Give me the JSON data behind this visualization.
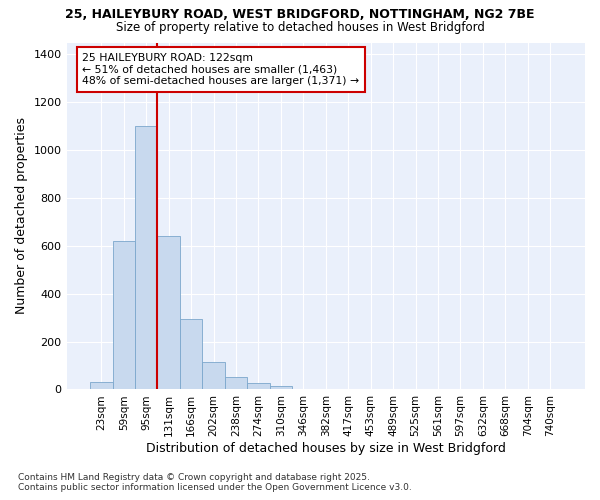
{
  "title_line1": "25, HAILEYBURY ROAD, WEST BRIDGFORD, NOTTINGHAM, NG2 7BE",
  "title_line2": "Size of property relative to detached houses in West Bridgford",
  "xlabel": "Distribution of detached houses by size in West Bridgford",
  "ylabel": "Number of detached properties",
  "categories": [
    "23sqm",
    "59sqm",
    "95sqm",
    "131sqm",
    "166sqm",
    "202sqm",
    "238sqm",
    "274sqm",
    "310sqm",
    "346sqm",
    "382sqm",
    "417sqm",
    "453sqm",
    "489sqm",
    "525sqm",
    "561sqm",
    "597sqm",
    "632sqm",
    "668sqm",
    "704sqm",
    "740sqm"
  ],
  "values": [
    30,
    620,
    1100,
    640,
    295,
    115,
    50,
    25,
    15,
    0,
    0,
    0,
    0,
    0,
    0,
    0,
    0,
    0,
    0,
    0,
    0
  ],
  "bar_color": "#c8d9ee",
  "bar_edge_color": "#7ba7cc",
  "annotation_text": "25 HAILEYBURY ROAD: 122sqm\n← 51% of detached houses are smaller (1,463)\n48% of semi-detached houses are larger (1,371) →",
  "annotation_box_color": "#ffffff",
  "annotation_box_edge": "#cc0000",
  "red_line_color": "#cc0000",
  "bg_color": "#eaf0fb",
  "grid_color": "#ffffff",
  "fig_bg_color": "#ffffff",
  "footer_line1": "Contains HM Land Registry data © Crown copyright and database right 2025.",
  "footer_line2": "Contains public sector information licensed under the Open Government Licence v3.0.",
  "ylim": [
    0,
    1450
  ],
  "yticks": [
    0,
    200,
    400,
    600,
    800,
    1000,
    1200,
    1400
  ]
}
